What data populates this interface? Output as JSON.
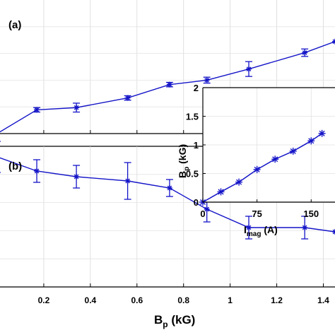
{
  "chart_data": [
    {
      "panel_label": "(a)",
      "type": "line",
      "xlim": [
        0,
        1.45
      ],
      "ylim": [
        0,
        1
      ],
      "series": [
        {
          "x": [
            0.0,
            0.17,
            0.34,
            0.56,
            0.74,
            0.9,
            1.08,
            1.32,
            1.45
          ],
          "y": [
            0.1,
            0.26,
            0.275,
            0.34,
            0.43,
            0.46,
            0.535,
            0.645,
            0.72
          ],
          "err": [
            0.0,
            0.015,
            0.03,
            0.015,
            0.015,
            0.02,
            0.05,
            0.025,
            0.0
          ],
          "color": "#1414c8",
          "marker": "star"
        }
      ],
      "grid": true,
      "xticks_visible": true,
      "yticks_visible": false
    },
    {
      "panel_label": "(b)",
      "type": "line",
      "xlim": [
        0,
        1.45
      ],
      "ylim": [
        0,
        1
      ],
      "series": [
        {
          "x": [
            0.0,
            0.17,
            0.34,
            0.56,
            0.74,
            0.9,
            1.08,
            1.32,
            1.45
          ],
          "y": [
            0.79,
            0.69,
            0.65,
            0.62,
            0.57,
            0.42,
            0.29,
            0.29,
            0.26
          ],
          "err": [
            0.11,
            0.08,
            0.08,
            0.13,
            0.06,
            0.09,
            0.08,
            0.08,
            0.0
          ],
          "color": "#1414c8",
          "marker": "star"
        }
      ],
      "xticks": [
        "0.2",
        "0.4",
        "0.6",
        "0.8",
        "1",
        "1.2",
        "1.4"
      ],
      "xtick_values": [
        0.2,
        0.4,
        0.6,
        0.8,
        1.0,
        1.2,
        1.4
      ],
      "xlabel": "B",
      "xlabel_sub": "p",
      "xlabel_unit": " (kG)",
      "grid": true
    },
    {
      "panel_label": "inset",
      "type": "line",
      "xlim": [
        0,
        165
      ],
      "ylim": [
        0,
        2
      ],
      "series": [
        {
          "x": [
            0,
            25,
            50,
            75,
            100,
            125,
            150,
            165
          ],
          "y": [
            0.0,
            0.18,
            0.35,
            0.57,
            0.75,
            0.89,
            1.07,
            1.2
          ],
          "color": "#1414c8",
          "marker": "star"
        }
      ],
      "xticks": [
        "0",
        "75",
        "150"
      ],
      "xtick_values": [
        0,
        75,
        150
      ],
      "yticks": [
        "0",
        "0.5",
        "1",
        "1.5",
        "2"
      ],
      "ytick_values": [
        0,
        0.5,
        1,
        1.5,
        2
      ],
      "xlabel": "I",
      "xlabel_sub": "mag",
      "xlabel_unit": " (A)",
      "ylabel": "B",
      "ylabel_sub": "p",
      "ylabel_unit": " (kG)",
      "grid": true
    }
  ]
}
